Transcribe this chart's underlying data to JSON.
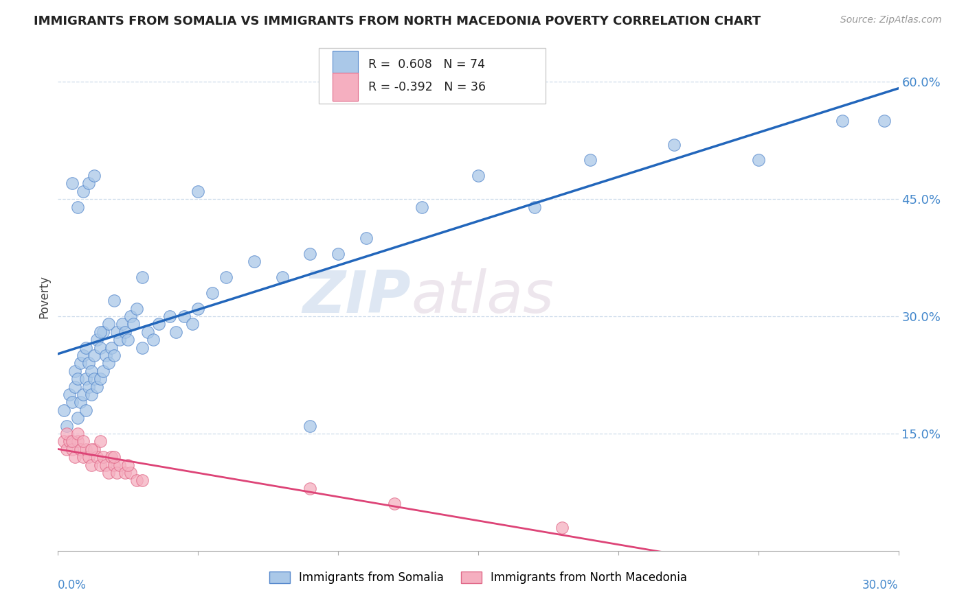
{
  "title": "IMMIGRANTS FROM SOMALIA VS IMMIGRANTS FROM NORTH MACEDONIA POVERTY CORRELATION CHART",
  "source": "Source: ZipAtlas.com",
  "ylabel": "Poverty",
  "y_tick_vals": [
    0.15,
    0.3,
    0.45,
    0.6
  ],
  "x_lim": [
    0.0,
    0.3
  ],
  "y_lim": [
    0.0,
    0.65
  ],
  "somalia_color": "#aac8e8",
  "somalia_edge": "#5588cc",
  "macedonia_color": "#f5afc0",
  "macedonia_edge": "#e06888",
  "somalia_R": 0.608,
  "somalia_N": 74,
  "macedonia_R": -0.392,
  "macedonia_N": 36,
  "somalia_line_color": "#2266bb",
  "macedonia_line_color": "#dd4477",
  "watermark_zip": "ZIP",
  "watermark_atlas": "atlas",
  "legend_somalia_label": "Immigrants from Somalia",
  "legend_macedonia_label": "Immigrants from North Macedonia",
  "somalia_scatter_x": [
    0.002,
    0.003,
    0.004,
    0.005,
    0.006,
    0.006,
    0.007,
    0.007,
    0.008,
    0.008,
    0.009,
    0.009,
    0.01,
    0.01,
    0.01,
    0.011,
    0.011,
    0.012,
    0.012,
    0.013,
    0.013,
    0.014,
    0.014,
    0.015,
    0.015,
    0.016,
    0.016,
    0.017,
    0.018,
    0.018,
    0.019,
    0.02,
    0.021,
    0.022,
    0.023,
    0.024,
    0.025,
    0.026,
    0.027,
    0.028,
    0.03,
    0.032,
    0.034,
    0.036,
    0.04,
    0.042,
    0.045,
    0.048,
    0.05,
    0.055,
    0.06,
    0.07,
    0.08,
    0.09,
    0.1,
    0.11,
    0.13,
    0.15,
    0.17,
    0.19,
    0.22,
    0.25,
    0.28,
    0.295,
    0.005,
    0.007,
    0.009,
    0.011,
    0.013,
    0.05,
    0.09,
    0.03,
    0.02,
    0.015
  ],
  "somalia_scatter_y": [
    0.18,
    0.16,
    0.2,
    0.19,
    0.21,
    0.23,
    0.17,
    0.22,
    0.19,
    0.24,
    0.2,
    0.25,
    0.18,
    0.22,
    0.26,
    0.21,
    0.24,
    0.2,
    0.23,
    0.22,
    0.25,
    0.21,
    0.27,
    0.22,
    0.26,
    0.23,
    0.28,
    0.25,
    0.24,
    0.29,
    0.26,
    0.25,
    0.28,
    0.27,
    0.29,
    0.28,
    0.27,
    0.3,
    0.29,
    0.31,
    0.26,
    0.28,
    0.27,
    0.29,
    0.3,
    0.28,
    0.3,
    0.29,
    0.31,
    0.33,
    0.35,
    0.37,
    0.35,
    0.38,
    0.38,
    0.4,
    0.44,
    0.48,
    0.44,
    0.5,
    0.52,
    0.5,
    0.55,
    0.55,
    0.47,
    0.44,
    0.46,
    0.47,
    0.48,
    0.46,
    0.16,
    0.35,
    0.32,
    0.28
  ],
  "macedonia_scatter_x": [
    0.002,
    0.003,
    0.004,
    0.005,
    0.006,
    0.007,
    0.008,
    0.009,
    0.01,
    0.011,
    0.012,
    0.013,
    0.014,
    0.015,
    0.016,
    0.017,
    0.018,
    0.019,
    0.02,
    0.021,
    0.022,
    0.024,
    0.026,
    0.028,
    0.03,
    0.003,
    0.005,
    0.007,
    0.009,
    0.012,
    0.015,
    0.02,
    0.025,
    0.12,
    0.18,
    0.09
  ],
  "macedonia_scatter_y": [
    0.14,
    0.13,
    0.14,
    0.13,
    0.12,
    0.14,
    0.13,
    0.12,
    0.13,
    0.12,
    0.11,
    0.13,
    0.12,
    0.11,
    0.12,
    0.11,
    0.1,
    0.12,
    0.11,
    0.1,
    0.11,
    0.1,
    0.1,
    0.09,
    0.09,
    0.15,
    0.14,
    0.15,
    0.14,
    0.13,
    0.14,
    0.12,
    0.11,
    0.06,
    0.03,
    0.08
  ]
}
